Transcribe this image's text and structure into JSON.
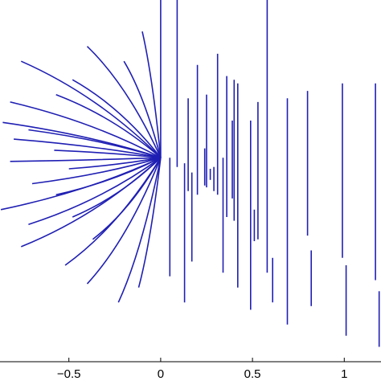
{
  "chart_data": {
    "type": "line",
    "title": "",
    "xlabel": "",
    "ylabel": "",
    "xlim": [
      -0.875,
      1.2
    ],
    "ylim": [
      -1.1,
      0.85
    ],
    "grid": false,
    "legend": "none",
    "colors": {
      "series": "#1f1fb4",
      "axes": "#000000",
      "background": "#ffffff"
    },
    "x_ticks": [
      {
        "value": -0.5,
        "label": "−0.5"
      },
      {
        "value": 0,
        "label": "0"
      },
      {
        "value": 0.5,
        "label": "0.5"
      },
      {
        "value": 1,
        "label": "1"
      }
    ],
    "hub": {
      "x": 0.0,
      "y": 0.0
    },
    "fan_segments": [
      {
        "name": "fan-1",
        "x": [
          -0.1,
          0.0
        ],
        "y": [
          0.68,
          0.0
        ]
      },
      {
        "name": "fan-2",
        "x": [
          -0.2,
          0.0
        ],
        "y": [
          0.52,
          0.0
        ]
      },
      {
        "name": "fan-3",
        "x": [
          -0.4,
          0.0
        ],
        "y": [
          0.6,
          0.0
        ]
      },
      {
        "name": "fan-4",
        "x": [
          -0.48,
          0.0
        ],
        "y": [
          0.42,
          0.0
        ]
      },
      {
        "name": "fan-5",
        "x": [
          -0.57,
          0.0
        ],
        "y": [
          0.34,
          0.0
        ]
      },
      {
        "name": "fan-6",
        "x": [
          -0.76,
          0.0
        ],
        "y": [
          0.52,
          0.0
        ]
      },
      {
        "name": "fan-7",
        "x": [
          -0.82,
          0.0
        ],
        "y": [
          0.3,
          0.0
        ]
      },
      {
        "name": "fan-8",
        "x": [
          -0.86,
          0.0
        ],
        "y": [
          0.19,
          0.0
        ]
      },
      {
        "name": "fan-9",
        "x": [
          -0.72,
          0.0
        ],
        "y": [
          0.15,
          0.0
        ]
      },
      {
        "name": "fan-10",
        "x": [
          -0.8,
          0.0
        ],
        "y": [
          0.1,
          0.0
        ]
      },
      {
        "name": "fan-11",
        "x": [
          -0.58,
          0.0
        ],
        "y": [
          0.04,
          0.0
        ]
      },
      {
        "name": "fan-12",
        "x": [
          -0.82,
          0.0
        ],
        "y": [
          -0.02,
          0.0
        ]
      },
      {
        "name": "fan-13",
        "x": [
          -0.5,
          0.0
        ],
        "y": [
          -0.06,
          0.0
        ]
      },
      {
        "name": "fan-14",
        "x": [
          -0.7,
          0.0
        ],
        "y": [
          -0.14,
          0.0
        ]
      },
      {
        "name": "fan-15",
        "x": [
          -0.57,
          0.0
        ],
        "y": [
          -0.2,
          0.0
        ]
      },
      {
        "name": "fan-16",
        "x": [
          -0.87,
          0.0
        ],
        "y": [
          -0.28,
          0.0
        ]
      },
      {
        "name": "fan-17",
        "x": [
          -0.72,
          0.0
        ],
        "y": [
          -0.36,
          0.0
        ]
      },
      {
        "name": "fan-18",
        "x": [
          -0.48,
          0.0
        ],
        "y": [
          -0.32,
          0.0
        ]
      },
      {
        "name": "fan-19",
        "x": [
          -0.76,
          0.0
        ],
        "y": [
          -0.48,
          0.0
        ]
      },
      {
        "name": "fan-20",
        "x": [
          -0.52,
          0.0
        ],
        "y": [
          -0.58,
          0.0
        ]
      },
      {
        "name": "fan-21",
        "x": [
          -0.37,
          0.0
        ],
        "y": [
          -0.44,
          0.0
        ]
      },
      {
        "name": "fan-22",
        "x": [
          -0.4,
          0.0
        ],
        "y": [
          -0.68,
          0.0
        ]
      },
      {
        "name": "fan-23",
        "x": [
          -0.23,
          0.0
        ],
        "y": [
          -0.78,
          0.0
        ]
      },
      {
        "name": "fan-24",
        "x": [
          -0.12,
          0.0
        ],
        "y": [
          -0.7,
          0.0
        ]
      }
    ],
    "vertical_segments": [
      {
        "x": 0.0,
        "y": [
          0.85,
          0.0
        ]
      },
      {
        "x": 0.05,
        "y": [
          0.0,
          -0.64
        ]
      },
      {
        "x": 0.09,
        "y": [
          0.85,
          -0.05
        ]
      },
      {
        "x": 0.13,
        "y": [
          -0.03,
          -0.78
        ]
      },
      {
        "x": 0.15,
        "y": [
          0.32,
          -0.18
        ]
      },
      {
        "x": 0.17,
        "y": [
          -0.08,
          -0.56
        ]
      },
      {
        "x": 0.2,
        "y": [
          0.5,
          -0.2
        ]
      },
      {
        "x": 0.24,
        "y": [
          0.05,
          -0.15
        ]
      },
      {
        "x": 0.25,
        "y": [
          0.34,
          -0.16
        ]
      },
      {
        "x": 0.27,
        "y": [
          -0.06,
          -0.12
        ]
      },
      {
        "x": 0.29,
        "y": [
          -0.05,
          -0.18
        ]
      },
      {
        "x": 0.31,
        "y": [
          0.56,
          -0.2
        ]
      },
      {
        "x": 0.34,
        "y": [
          0.0,
          -0.62
        ]
      },
      {
        "x": 0.36,
        "y": [
          0.44,
          -0.32
        ]
      },
      {
        "x": 0.39,
        "y": [
          0.2,
          -0.22
        ]
      },
      {
        "x": 0.4,
        "y": [
          0.42,
          -0.34
        ]
      },
      {
        "x": 0.42,
        "y": [
          0.4,
          -0.7
        ]
      },
      {
        "x": 0.49,
        "y": [
          0.2,
          -0.82
        ]
      },
      {
        "x": 0.51,
        "y": [
          -0.28,
          -0.45
        ]
      },
      {
        "x": 0.53,
        "y": [
          0.3,
          -0.44
        ]
      },
      {
        "x": 0.58,
        "y": [
          0.85,
          -0.62
        ]
      },
      {
        "x": 0.61,
        "y": [
          -0.54,
          -0.78
        ]
      },
      {
        "x": 0.69,
        "y": [
          0.32,
          -0.9
        ]
      },
      {
        "x": 0.8,
        "y": [
          0.36,
          -0.42
        ]
      },
      {
        "x": 0.82,
        "y": [
          -0.5,
          -0.8
        ]
      },
      {
        "x": 0.99,
        "y": [
          0.4,
          -0.54
        ]
      },
      {
        "x": 1.01,
        "y": [
          -0.58,
          -0.96
        ]
      },
      {
        "x": 1.17,
        "y": [
          0.4,
          -0.66
        ]
      },
      {
        "x": 1.19,
        "y": [
          -0.72,
          -1.02
        ]
      }
    ]
  }
}
